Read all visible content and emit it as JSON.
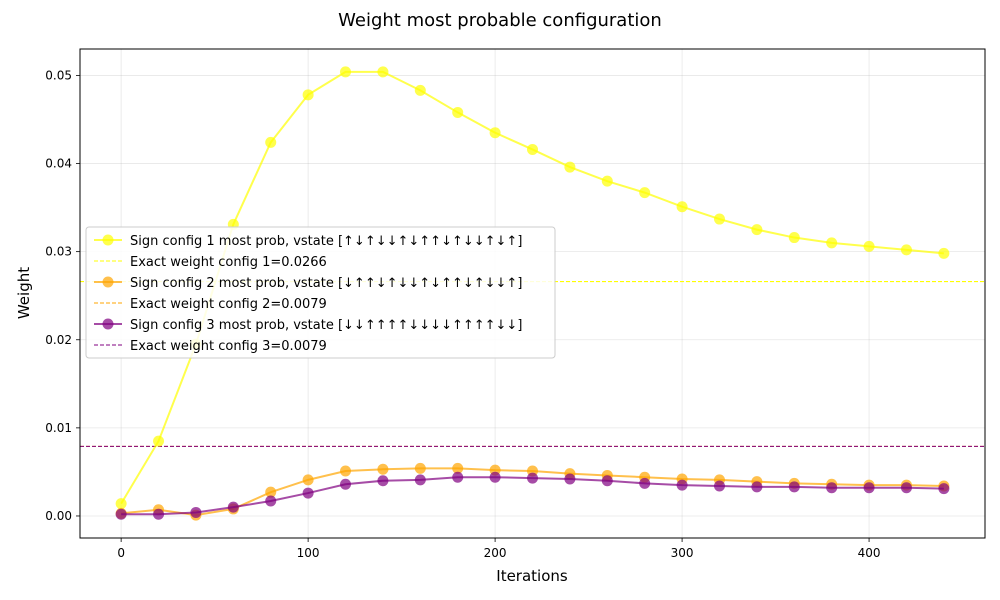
{
  "chart_data": {
    "type": "line",
    "title": "Weight most probable configuration",
    "xlabel": "Iterations",
    "ylabel": "Weight",
    "xlim": [
      -22,
      462
    ],
    "ylim": [
      -0.0025,
      0.053
    ],
    "xticks": [
      0,
      100,
      200,
      300,
      400
    ],
    "yticks": [
      0.0,
      0.01,
      0.02,
      0.03,
      0.04,
      0.05
    ],
    "ytick_labels": [
      "0.00",
      "0.01",
      "0.02",
      "0.03",
      "0.04",
      "0.05"
    ],
    "grid": true,
    "legend_position": "center-left",
    "x": [
      0,
      20,
      40,
      60,
      80,
      100,
      120,
      140,
      160,
      180,
      200,
      220,
      240,
      260,
      280,
      300,
      320,
      340,
      360,
      380,
      400,
      420,
      440
    ],
    "series": [
      {
        "name": "Sign config 1 most prob, vstate [↑↓↑↓↓↑↓↑↑↓↑↓↓↑↓↑]",
        "color": "#ffff00",
        "values": [
          0.0014,
          0.0085,
          0.0195,
          0.0331,
          0.0424,
          0.0478,
          0.0504,
          0.0504,
          0.0483,
          0.0458,
          0.0435,
          0.0416,
          0.0396,
          0.038,
          0.0367,
          0.0351,
          0.0337,
          0.0325,
          0.0316,
          0.031,
          0.0306,
          0.0302,
          0.0298
        ]
      },
      {
        "name": "Sign config 2 most prob, vstate [↓↑↑↓↑↓↓↑↓↑↑↓↑↓↓↑]",
        "color": "#ffa500",
        "values": [
          0.0003,
          0.0007,
          0.0001,
          0.0008,
          0.0027,
          0.0041,
          0.0051,
          0.0053,
          0.0054,
          0.0054,
          0.0052,
          0.0051,
          0.0048,
          0.0046,
          0.0044,
          0.0042,
          0.0041,
          0.0039,
          0.0037,
          0.0036,
          0.0035,
          0.0035,
          0.0034
        ]
      },
      {
        "name": "Sign config 3 most prob, vstate [↓↓↑↑↑↑↓↓↓↓↑↑↑↑↓↓]",
        "color": "#800080",
        "values": [
          0.0002,
          0.0002,
          0.0004,
          0.001,
          0.0017,
          0.0026,
          0.0036,
          0.004,
          0.0041,
          0.0044,
          0.0044,
          0.0043,
          0.0042,
          0.004,
          0.0037,
          0.0035,
          0.0034,
          0.0033,
          0.0033,
          0.0032,
          0.0032,
          0.0032,
          0.0031
        ]
      }
    ],
    "reference_lines": [
      {
        "name": "Exact weight config 1=0.0266",
        "value": 0.0266,
        "color": "#ffff00"
      },
      {
        "name": "Exact weight config 2=0.0079",
        "value": 0.0079,
        "color": "#ffa500"
      },
      {
        "name": "Exact weight config 3=0.0079",
        "value": 0.0079,
        "color": "#800080"
      }
    ]
  }
}
